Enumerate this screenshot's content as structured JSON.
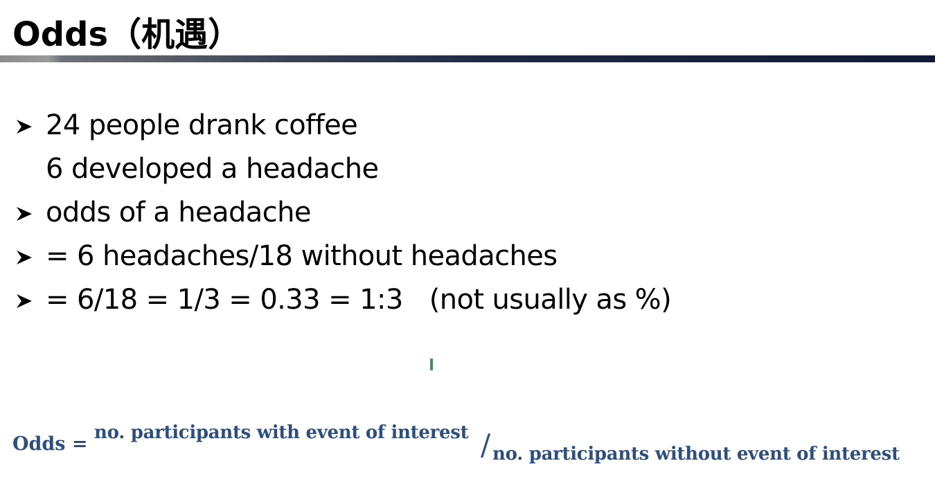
{
  "slide": {
    "title": "Odds（机遇）",
    "bullets": [
      {
        "marker": "arrow-bullet-icon",
        "text": "24 people drank coffee"
      },
      {
        "marker": null,
        "text": "6 developed a headache"
      },
      {
        "marker": "arrow-bullet-icon",
        "text": "odds of a headache"
      },
      {
        "marker": "arrow-bullet-icon",
        "text": "= 6 headaches/18 without headaches"
      },
      {
        "marker": "arrow-bullet-icon",
        "text": "= 6/18 = 1/3 = 0.33 = 1:3",
        "note": "(not usually as %)"
      }
    ],
    "formula": {
      "lhs": "Odds =",
      "numerator": "no. participants with event of interest",
      "slash": "/",
      "denominator": "no. participants without event of interest"
    }
  },
  "colors": {
    "title": "#000000",
    "body_text": "#000000",
    "formula": "#2e4f7e",
    "rule_dark": "#0f1b36",
    "rule_light": "#8c8c8c",
    "cursor_mark": "#3f8f5f"
  }
}
